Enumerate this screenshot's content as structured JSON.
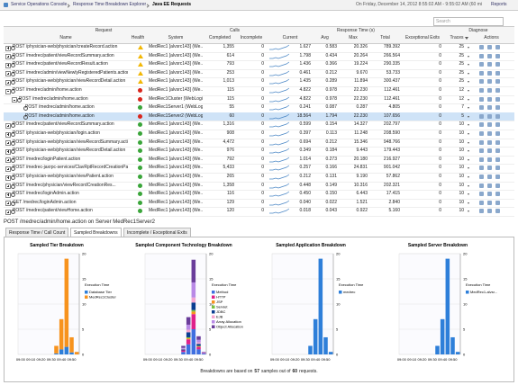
{
  "header": {
    "breadcrumb": [
      "Service Operations Console",
      "Response Time Breakdown Explorer",
      "Java EE Requests"
    ],
    "time_range": "On Friday, December 14, 2012 8:55:02 AM - 9:55:02 AM (60 minutes)",
    "reports": "Reports"
  },
  "search_placeholder": "Search",
  "table": {
    "group_headers": [
      "Request",
      "Calls",
      "Response Time (s)",
      "Diagnose"
    ],
    "columns": [
      "Name",
      "Health",
      "System",
      "Completed",
      "Incomplete",
      "Current",
      "Avg",
      "Max",
      "Total",
      "Exceptional Exits",
      "Traces",
      "Actions"
    ],
    "rows": [
      {
        "level": 0,
        "expanded": false,
        "health": "warning",
        "cells": [
          "POST /physician-web/physician/createRecord.action",
          "MedRec1 [alvsrc143] (We...",
          "1,355",
          "0",
          "1.627",
          "0.583",
          "20.326",
          "789.392",
          "0",
          "25"
        ]
      },
      {
        "level": 0,
        "expanded": false,
        "health": "warning",
        "cells": [
          "POST /medrec/patient/viewRecordSummary.action",
          "MedRec1 [alvsrc143] (We...",
          "614",
          "0",
          "1.798",
          "0.434",
          "20.264",
          "266.564",
          "0",
          "25"
        ]
      },
      {
        "level": 0,
        "expanded": false,
        "health": "warning",
        "cells": [
          "POST /medrec/patient/viewRecordResult.action",
          "MedRec1 [alvsrc143] (We...",
          "793",
          "0",
          "1.436",
          "0.366",
          "19.224",
          "290.335",
          "0",
          "25"
        ]
      },
      {
        "level": 0,
        "expanded": false,
        "health": "warning",
        "cells": [
          "POST /medrec/admin/viewNewlyRegisteredPatients.action",
          "MedRec1 [alvsrc143] (We...",
          "253",
          "0",
          "0.461",
          "0.212",
          "9.670",
          "53.733",
          "0",
          "25"
        ]
      },
      {
        "level": 0,
        "expanded": false,
        "health": "warning",
        "cells": [
          "POST /physician-web/physician/viewRecordDetail.action",
          "MedRec1 [alvsrc143] (We...",
          "1,013",
          "0",
          "1.435",
          "0.289",
          "11.894",
          "300.437",
          "0",
          "25"
        ]
      },
      {
        "level": 0,
        "expanded": true,
        "health": "error",
        "cells": [
          "POST /medrec/admin/home.action",
          "MedRec1 [alvsrc143] (We...",
          "115",
          "0",
          "4.822",
          "0.978",
          "22.230",
          "112.461",
          "0",
          "12"
        ]
      },
      {
        "level": 1,
        "expanded": true,
        "health": "error",
        "cells": [
          "POST /medrec/admin/home.action",
          "MedRec1Cluster (WebLogi...",
          "115",
          "0",
          "4.822",
          "0.978",
          "22.230",
          "112.461",
          "0",
          "12"
        ]
      },
      {
        "level": 2,
        "expanded": false,
        "health": "ok",
        "cells": [
          "POST /medrec/admin/home.action",
          "MedRec1Server1 (WebLog...",
          "55",
          "0",
          "0.241",
          "0.087",
          "0.287",
          "4.805",
          "0",
          "7"
        ]
      },
      {
        "level": 2,
        "expanded": false,
        "health": "error",
        "selected": true,
        "cells": [
          "POST /medrec/admin/home.action",
          "MedRec1Server2 (WebLog...",
          "60",
          "0",
          "18.564",
          "1.794",
          "22.230",
          "107.656",
          "0",
          "5"
        ]
      },
      {
        "level": 0,
        "expanded": false,
        "health": "ok",
        "cells": [
          "POST /medrec/patient/viewRecordSummary.action",
          "MedRec1 [alvsrc143] (We...",
          "1,316",
          "0",
          "0.599",
          "0.154",
          "14.327",
          "202.797",
          "0",
          "10"
        ]
      },
      {
        "level": 0,
        "expanded": false,
        "health": "ok",
        "cells": [
          "POST /physician-web/physician/login.action",
          "MedRec1 [alvsrc143] (We...",
          "908",
          "0",
          "0.397",
          "0.113",
          "11.248",
          "208.590",
          "0",
          "10"
        ]
      },
      {
        "level": 0,
        "expanded": false,
        "health": "ok",
        "cells": [
          "POST /physician-web/physician/viewRecordSummary.action",
          "MedRec1 [alvsrc143] (We...",
          "4,472",
          "0",
          "0.694",
          "0.212",
          "15.346",
          "948.766",
          "0",
          "10"
        ]
      },
      {
        "level": 0,
        "expanded": false,
        "health": "ok",
        "cells": [
          "POST /physician-web/physician/viewRecordDetail.action",
          "MedRec1 [alvsrc143] (We...",
          "976",
          "0",
          "0.349",
          "0.184",
          "9.443",
          "179.443",
          "0",
          "10"
        ]
      },
      {
        "level": 0,
        "expanded": false,
        "health": "ok",
        "cells": [
          "POST /medrec/loginPatient.action",
          "MedRec1 [alvsrc143] (We...",
          "792",
          "0",
          "1.014",
          "0.273",
          "20.180",
          "216.927",
          "0",
          "10"
        ]
      },
      {
        "level": 0,
        "expanded": false,
        "health": "ok",
        "cells": [
          "POST /medrec-jaxrpc-services/ClavRptRecordCreationPa...",
          "MedRec1 [alvsrc143] (We...",
          "5,433",
          "0",
          "0.257",
          "0.166",
          "24.831",
          "901.042",
          "0",
          "10"
        ]
      },
      {
        "level": 0,
        "expanded": false,
        "health": "ok",
        "cells": [
          "POST /physician-web/physician/viewPatient.action",
          "MedRec1 [alvsrc143] (We...",
          "265",
          "0",
          "0.212",
          "0.131",
          "9.190",
          "57.862",
          "0",
          "10"
        ]
      },
      {
        "level": 0,
        "expanded": false,
        "health": "ok",
        "cells": [
          "POST /medrec/physician/viewRecordCreationRes...",
          "MedRec1 [alvsrc143] (We...",
          "1,358",
          "0",
          "0.448",
          "0.149",
          "10.316",
          "202.321",
          "0",
          "10"
        ]
      },
      {
        "level": 0,
        "expanded": false,
        "health": "ok",
        "cells": [
          "POST /medrec/loginAdmin.action",
          "MedRec1 [alvsrc143] (We...",
          "116",
          "0",
          "0.450",
          "0.150",
          "6.443",
          "17.415",
          "0",
          "10"
        ]
      },
      {
        "level": 0,
        "expanded": false,
        "health": "ok",
        "cells": [
          "GET /medrec/loginAdmin.action",
          "MedRec1 [alvsrc143] (We...",
          "129",
          "0",
          "0.040",
          "0.022",
          "1.521",
          "2.840",
          "0",
          "10"
        ]
      },
      {
        "level": 0,
        "expanded": false,
        "health": "ok",
        "cells": [
          "POST /medrec/patient/viewHome.action",
          "MedRec1 [alvsrc143] (We...",
          "120",
          "0",
          "0.018",
          "0.043",
          "0.922",
          "5.160",
          "0",
          "10"
        ]
      }
    ]
  },
  "detail": {
    "title": "POST /medrec/admin/home.action on Server MedRec1Server2",
    "tabs": [
      "Response Time / Call Count",
      "Sampled Breakdowns",
      "Incomplete / Exceptional Exits"
    ],
    "active_tab": 1,
    "charts": [
      {
        "type": "bar",
        "title": "Sampled Tier Breakdown",
        "legend_title": "Execution Time",
        "categories": [
          "09:00",
          null,
          "09:10",
          null,
          "09:20",
          null,
          "09:30",
          null,
          "09:40",
          null,
          "09:50",
          null
        ],
        "ylim": [
          0,
          20
        ],
        "yticks": [
          0,
          5,
          10,
          15,
          20
        ],
        "series": [
          {
            "name": "Database Tier",
            "color": "#2e7fd9",
            "values": [
              0,
              0,
              0,
              0,
              0,
              0,
              0,
              0.2,
              1,
              1.5,
              0.4,
              0
            ]
          },
          {
            "name": "MedRec1Cluster",
            "color": "#f7931e",
            "values": [
              0,
              0,
              0,
              0,
              0,
              0,
              0,
              1.5,
              6,
              17.5,
              3,
              0.5
            ]
          }
        ]
      },
      {
        "type": "bar",
        "title": "Sampled Component Technology Breakdown",
        "legend_title": "Execution Time",
        "categories": [
          "09:00",
          null,
          "09:10",
          null,
          "09:20",
          null,
          "09:30",
          null,
          "09:40",
          null,
          "09:50",
          null
        ],
        "ylim": [
          0,
          20
        ],
        "yticks": [
          0,
          5,
          10,
          15,
          20
        ],
        "series": [
          {
            "name": "Method",
            "color": "#3f6fe0",
            "values": [
              0,
              0,
              0,
              0,
              0,
              0,
              0,
              0.5,
              2,
              5,
              1,
              0.2
            ]
          },
          {
            "name": "HTTP",
            "color": "#e0218a",
            "values": [
              0,
              0,
              0,
              0,
              0,
              0,
              0,
              0.3,
              1,
              3,
              0.5,
              0.1
            ]
          },
          {
            "name": "JSP",
            "color": "#f7931e",
            "values": [
              0,
              0,
              0,
              0,
              0,
              0,
              0,
              0,
              0.2,
              0.5,
              0.1,
              0
            ]
          },
          {
            "name": "Servlet",
            "color": "#7ac143",
            "values": [
              0,
              0,
              0,
              0,
              0,
              0,
              0,
              0,
              0.2,
              0.3,
              0.1,
              0
            ]
          },
          {
            "name": "JDBC",
            "color": "#0b3d91",
            "values": [
              0,
              0,
              0,
              0,
              0,
              0,
              0,
              0.2,
              1,
              1.5,
              0.4,
              0
            ]
          },
          {
            "name": "EJB",
            "color": "#f4a6d0",
            "values": [
              0,
              0,
              0,
              0,
              0,
              0,
              0,
              0.1,
              0.5,
              1,
              0.3,
              0
            ]
          },
          {
            "name": "Array Allocation",
            "color": "#b98ae6",
            "values": [
              0,
              0,
              0,
              0,
              0,
              0,
              0,
              0.2,
              1,
              3,
              0.5,
              0.1
            ]
          },
          {
            "name": "Object Allocation",
            "color": "#6a3d9a",
            "values": [
              0,
              0,
              0,
              0,
              0,
              0,
              0,
              0.4,
              1.5,
              4.5,
              0.7,
              0.1
            ]
          }
        ]
      },
      {
        "type": "bar",
        "title": "Sampled Application Breakdown",
        "legend_title": "Execution Time",
        "categories": [
          "09:00",
          null,
          "09:10",
          null,
          "09:20",
          null,
          "09:30",
          null,
          "09:40",
          null,
          "09:50",
          null
        ],
        "ylim": [
          0,
          20
        ],
        "yticks": [
          0,
          5,
          10,
          15,
          20
        ],
        "series": [
          {
            "name": "medrec",
            "color": "#2e7fd9",
            "values": [
              0,
              0,
              0,
              0,
              0,
              0,
              0,
              1.7,
              7,
              19,
              3.4,
              0.5
            ]
          }
        ]
      },
      {
        "type": "bar",
        "title": "Sampled Server Breakdown",
        "legend_title": "Execution Time",
        "categories": [
          "09:00",
          null,
          "09:10",
          null,
          "09:20",
          null,
          "09:30",
          null,
          "09:40",
          null,
          "09:50",
          null
        ],
        "ylim": [
          0,
          20
        ],
        "yticks": [
          0,
          5,
          10,
          15,
          20
        ],
        "series": [
          {
            "name": "MedRec1-alvsr...",
            "color": "#2e7fd9",
            "values": [
              0,
              0,
              0,
              0,
              0,
              0,
              0,
              1.7,
              7,
              19,
              3.4,
              0.5
            ]
          }
        ]
      }
    ],
    "footer": {
      "prefix": "Breakdowns are based on",
      "samples": "57",
      "middle": "samples out of",
      "requests": "60",
      "suffix": "requests."
    }
  }
}
